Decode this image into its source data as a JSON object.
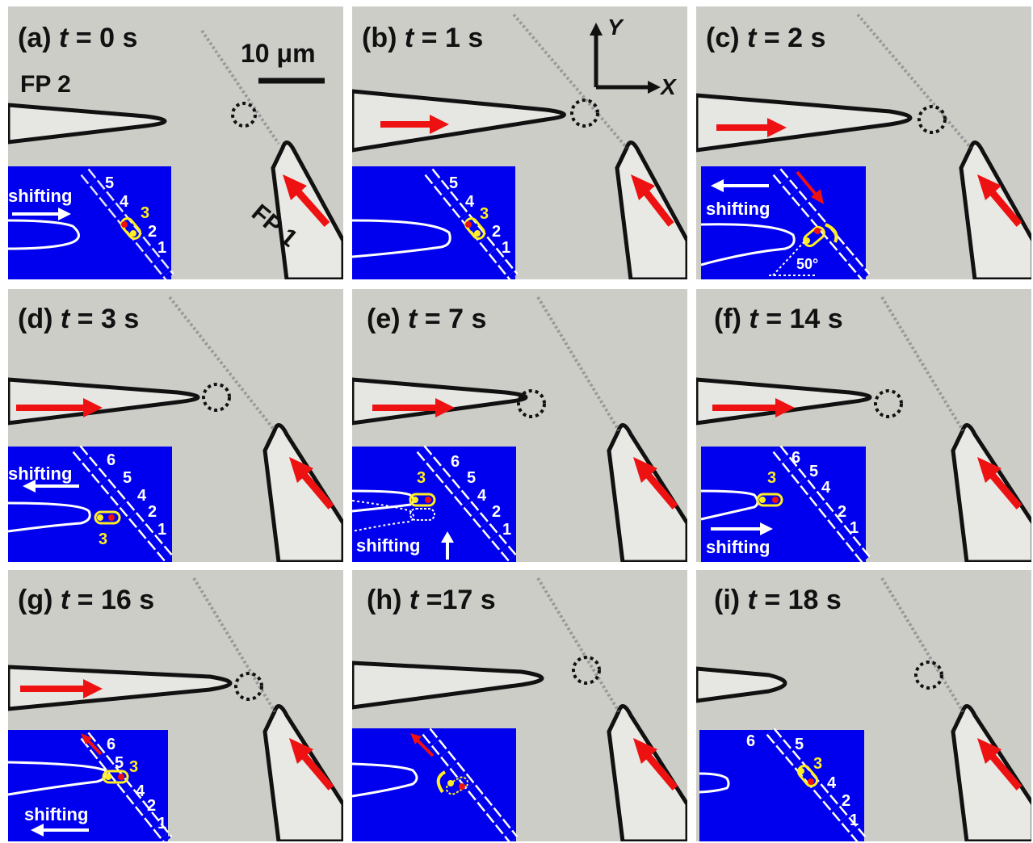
{
  "figure": {
    "panels": [
      {
        "letter": "(a)",
        "t_value": "= 0 s"
      },
      {
        "letter": "(b)",
        "t_value": "= 1 s"
      },
      {
        "letter": "(c)",
        "t_value": "= 2 s"
      },
      {
        "letter": "(d)",
        "t_value": "= 3 s"
      },
      {
        "letter": "(e)",
        "t_value": "= 7 s"
      },
      {
        "letter": "(f)",
        "t_value": "= 14 s"
      },
      {
        "letter": "(g)",
        "t_value": "= 16 s"
      },
      {
        "letter": "(h)",
        "t_value": "=17 s"
      },
      {
        "letter": "(i)",
        "t_value": "= 18 s"
      }
    ],
    "t_symbol": "t",
    "fp2_label": "FP 2",
    "fp1_label": "FP 1",
    "scale_bar": "10 μm",
    "axis_y": "Y",
    "axis_x": "X",
    "inset": {
      "shifting": "shifting",
      "angle": "50°",
      "n1": "1",
      "n2": "2",
      "n3": "3",
      "n4": "4",
      "n5": "5",
      "n6": "6"
    },
    "colors": {
      "background": "#cdcdc8",
      "inset": "#0000ee",
      "arrow": "#ee1111",
      "highlight": "#ffee22",
      "fiber": "#111111"
    }
  }
}
